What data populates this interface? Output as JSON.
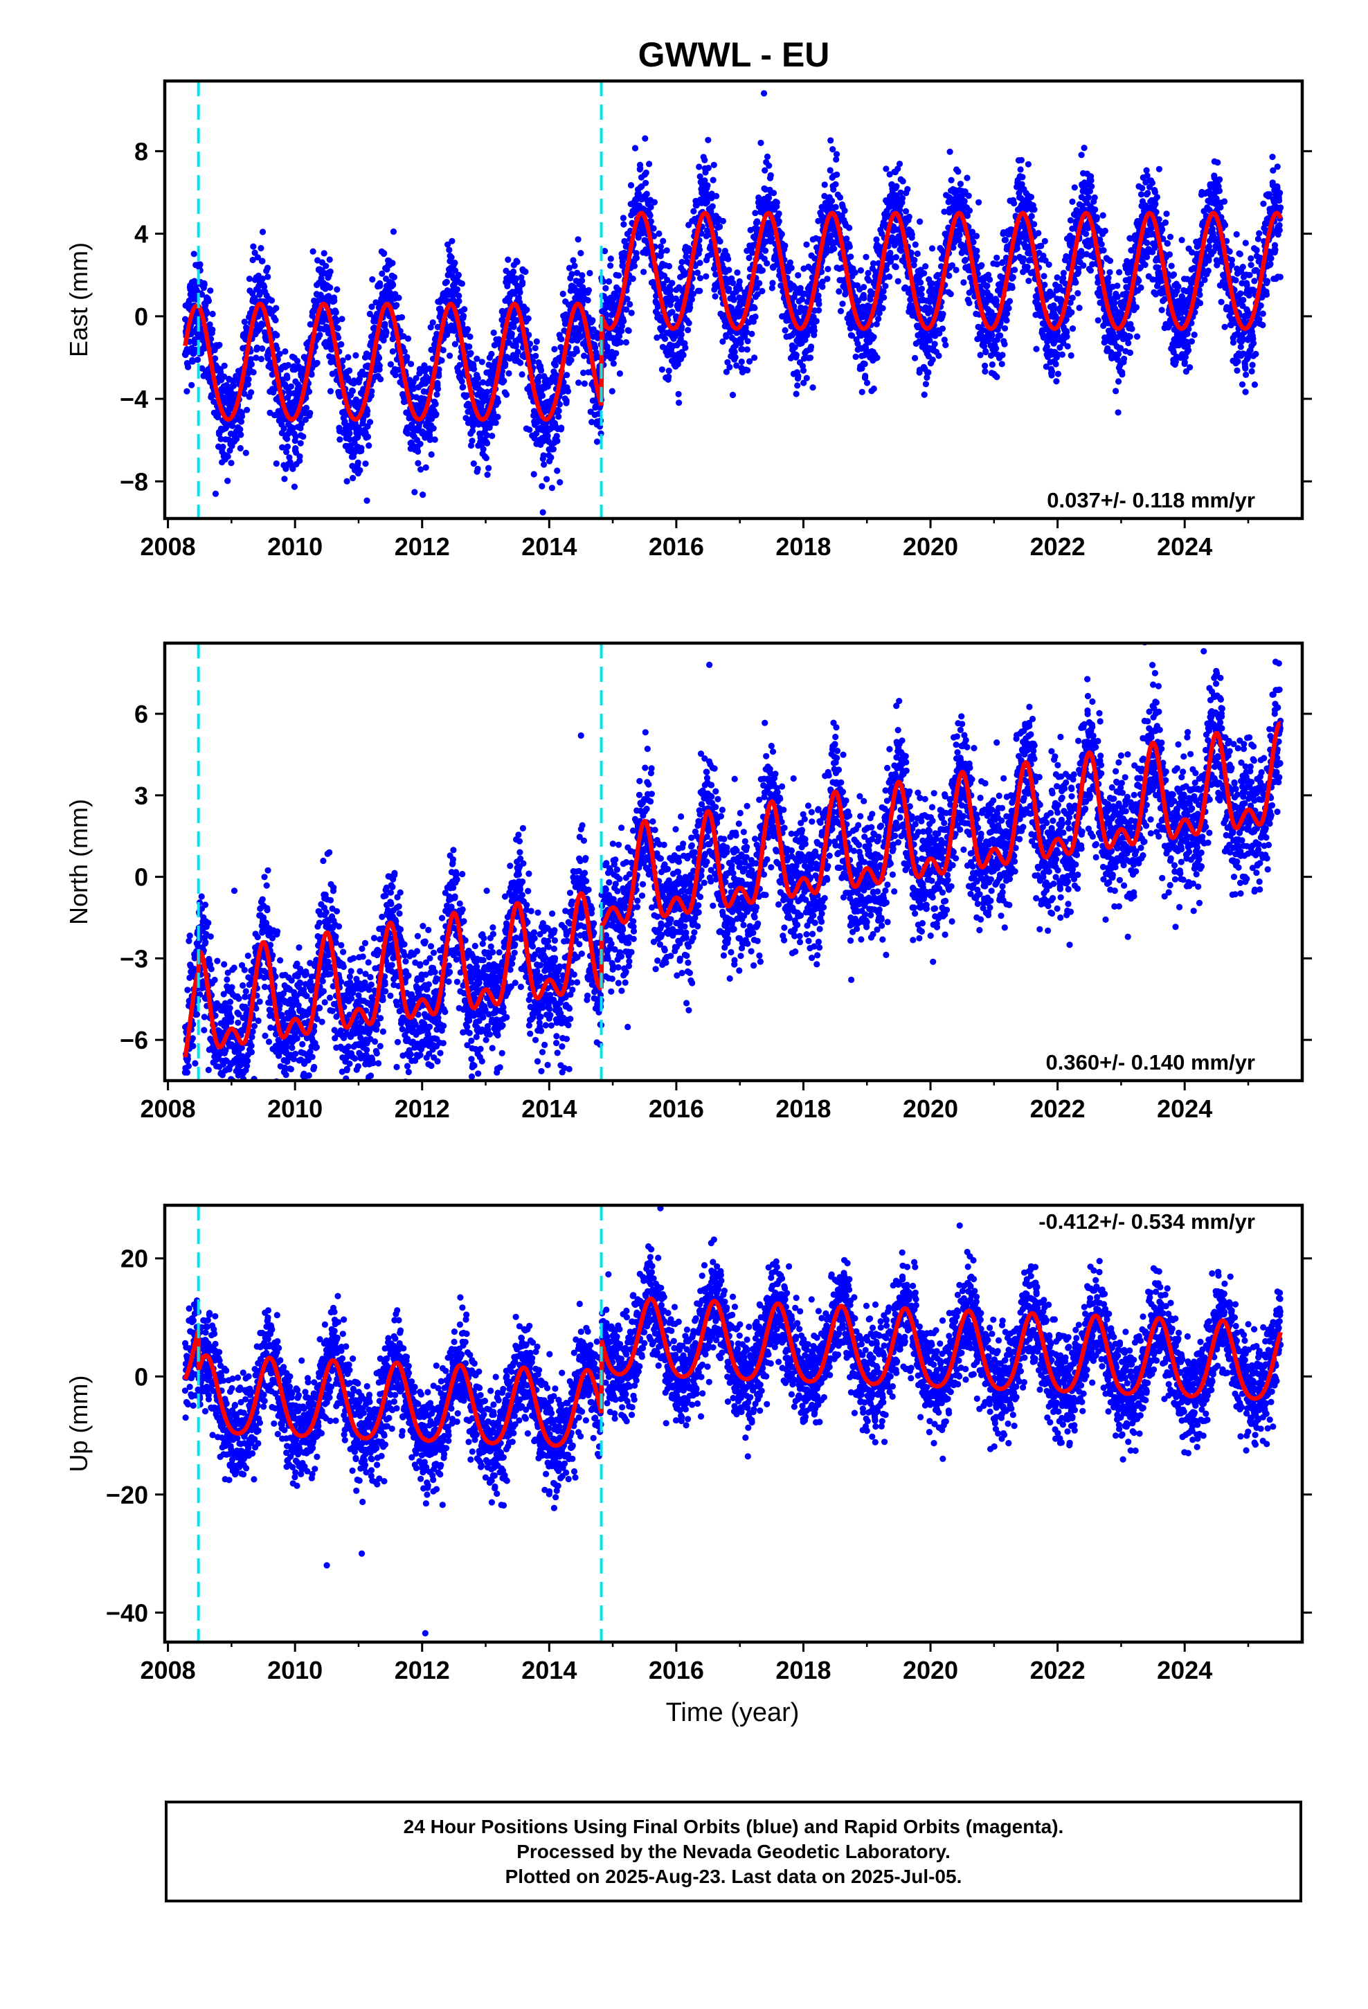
{
  "title": "GWWL - EU",
  "xlabel": "Time (year)",
  "caption": [
    "24 Hour Positions Using Final Orbits (blue) and Rapid Orbits (magenta).",
    "Processed by the Nevada Geodetic Laboratory.",
    "Plotted on 2025-Aug-23. Last data on 2025-Jul-05."
  ],
  "colors": {
    "points": "#0000ff",
    "model": "#ff0000",
    "breaks": "#00e5ee",
    "frame": "#000000"
  },
  "chart_data": [
    {
      "type": "scatter",
      "ylabel": "East (mm)",
      "xlim": [
        2007.95,
        2025.85
      ],
      "ylim": [
        -9.8,
        11.4
      ],
      "xticks": [
        2008,
        2010,
        2012,
        2014,
        2016,
        2018,
        2020,
        2022,
        2024
      ],
      "yticks": [
        -8,
        -4,
        0,
        4,
        8
      ],
      "rate": "0.037+/- 0.118 mm/yr",
      "breaks": [
        2008.48,
        2014.82
      ],
      "segments": [
        {
          "start": 2008.27,
          "end": 2008.48,
          "offset": -2.5,
          "annual": 2.8,
          "semiannual": 0.2
        },
        {
          "start": 2008.48,
          "end": 2014.82,
          "offset": -2.4,
          "annual": 2.8,
          "semiannual": 0.2
        },
        {
          "start": 2014.82,
          "end": 2025.51,
          "offset": 2.0,
          "annual": 2.8,
          "semiannual": 0.2
        }
      ],
      "peak_phase": 0.45,
      "noise_sd": 1.3,
      "outliers": [
        {
          "x": 2017.38,
          "y": 10.8
        },
        {
          "x": 2017.33,
          "y": 8.4
        },
        {
          "x": 2011.55,
          "y": 4.1
        },
        {
          "x": 2013.9,
          "y": -9.5
        },
        {
          "x": 2008.75,
          "y": -8.6
        }
      ]
    },
    {
      "type": "scatter",
      "ylabel": "North (mm)",
      "xlim": [
        2007.95,
        2025.85
      ],
      "ylim": [
        -7.5,
        8.6
      ],
      "xticks": [
        2008,
        2010,
        2012,
        2014,
        2016,
        2018,
        2020,
        2022,
        2024
      ],
      "yticks": [
        -6,
        -3,
        0,
        3,
        6
      ],
      "rate": "0.360+/- 0.140 mm/yr",
      "breaks": [
        2008.48,
        2014.82
      ],
      "segments": [
        {
          "start": 2008.27,
          "end": 2008.48,
          "offset": -3.6,
          "annual": 1.5,
          "semiannual": 0.9
        },
        {
          "start": 2008.48,
          "end": 2014.82,
          "offset": -2.9,
          "annual": 1.5,
          "semiannual": 0.9
        },
        {
          "start": 2014.82,
          "end": 2025.51,
          "offset": -0.6,
          "annual": 1.5,
          "semiannual": 0.9
        }
      ],
      "trend": 0.36,
      "trend_ref": 2014.8,
      "peak_phase": 0.5,
      "noise_sd": 1.2,
      "outliers": [
        {
          "x": 2016.52,
          "y": 7.8
        },
        {
          "x": 2024.3,
          "y": 8.3
        },
        {
          "x": 2014.5,
          "y": 5.2
        },
        {
          "x": 2011.6,
          "y": -7.0
        },
        {
          "x": 2010.3,
          "y": -7.0
        }
      ]
    },
    {
      "type": "scatter",
      "ylabel": "Up (mm)",
      "xlim": [
        2007.95,
        2025.85
      ],
      "ylim": [
        -45,
        29
      ],
      "xticks": [
        2008,
        2010,
        2012,
        2014,
        2016,
        2018,
        2020,
        2022,
        2024
      ],
      "yticks": [
        -40,
        -20,
        0,
        20
      ],
      "rate": "-0.412+/- 0.534 mm/yr",
      "breaks": [
        2008.48,
        2014.82
      ],
      "segments": [
        {
          "start": 2008.27,
          "end": 2008.48,
          "offset": 0.5,
          "annual": 6.5,
          "semiannual": 1.0
        },
        {
          "start": 2008.48,
          "end": 2014.82,
          "offset": -6.5,
          "annual": 6.5,
          "semiannual": 1.0
        },
        {
          "start": 2014.82,
          "end": 2025.51,
          "offset": 6.0,
          "annual": 6.5,
          "semiannual": 1.0
        }
      ],
      "trend": -0.412,
      "trend_ref": 2014.8,
      "peak_phase": 0.6,
      "noise_sd": 4.2,
      "outliers": [
        {
          "x": 2012.05,
          "y": -43.5
        },
        {
          "x": 2015.75,
          "y": 28.5
        },
        {
          "x": 2011.05,
          "y": -30
        },
        {
          "x": 2010.5,
          "y": -32
        }
      ]
    }
  ]
}
